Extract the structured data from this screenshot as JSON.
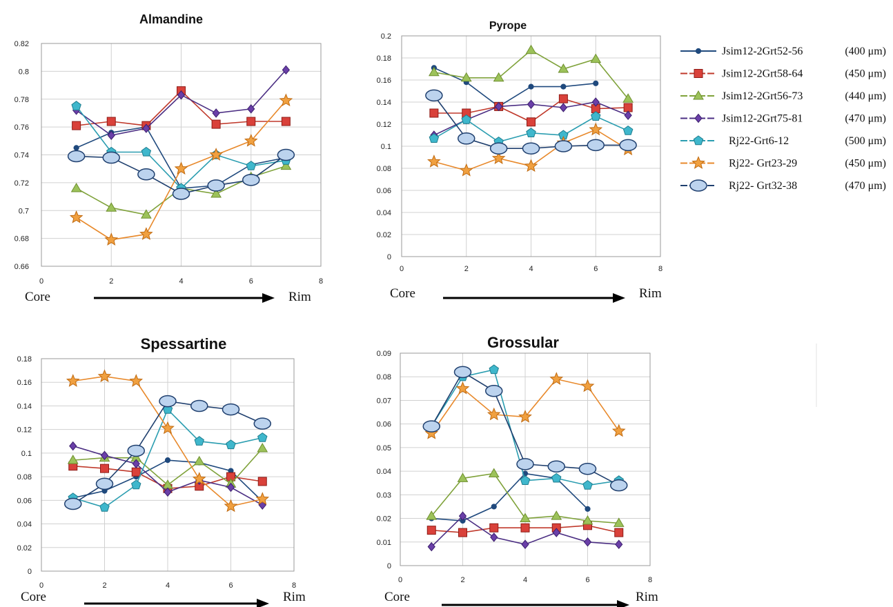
{
  "axis_notes": {
    "core": "Core",
    "rim": "Rim"
  },
  "legend": [
    {
      "label": "Jsim12-2Grt52-56",
      "size": "(400 μm)"
    },
    {
      "label": "Jsim12-2Grt58-64",
      "size": "(450 μm)"
    },
    {
      "label": "Jsim12-2Grt56-73",
      "size": "(440 μm)"
    },
    {
      "label": "Jsim12-2Grt75-81",
      "size": "(470 μm)"
    },
    {
      "label": "Rj22-Grt6-12",
      "size": "(500 μm)"
    },
    {
      "label": "Rj22- Grt23-29",
      "size": "(450 μm)"
    },
    {
      "label": "Rj22- Grt32-38",
      "size": "(470 μm)"
    }
  ],
  "styles": [
    {
      "color": "#1F497D",
      "marker": "circle"
    },
    {
      "color": "#C0392B",
      "marker": "square"
    },
    {
      "color": "#7FA23A",
      "marker": "triangle"
    },
    {
      "color": "#4B2E83",
      "marker": "diamond"
    },
    {
      "color": "#2A9DB0",
      "marker": "pentagon"
    },
    {
      "color": "#E8892B",
      "marker": "star"
    },
    {
      "color": "#1F3F6E",
      "marker": "ellipse"
    }
  ],
  "chart_data": [
    {
      "type": "line",
      "title": "Almandine",
      "xlim": [
        0,
        8
      ],
      "ylim": [
        0.66,
        0.82
      ],
      "x_ticks": [
        "0",
        "2",
        "4",
        "6",
        "8"
      ],
      "y_ticks": [
        "0.66",
        "0.68",
        "0.7",
        "0.72",
        "0.74",
        "0.76",
        "0.78",
        "0.8",
        "0.82"
      ],
      "x": [
        1,
        2,
        3,
        4,
        5,
        6,
        7
      ],
      "series": [
        {
          "name": "Jsim12-2Grt52-56",
          "values": [
            0.745,
            0.756,
            0.76,
            0.716,
            0.718,
            0.733,
            0.738
          ]
        },
        {
          "name": "Jsim12-2Grt58-64",
          "values": [
            0.761,
            0.764,
            0.761,
            0.786,
            0.762,
            0.764,
            0.764
          ]
        },
        {
          "name": "Jsim12-2Grt56-73",
          "values": [
            0.716,
            0.702,
            0.697,
            0.716,
            0.712,
            0.724,
            0.732
          ]
        },
        {
          "name": "Jsim12-2Grt75-81",
          "values": [
            0.772,
            0.754,
            0.759,
            0.783,
            0.77,
            0.773,
            0.801
          ]
        },
        {
          "name": "Rj22-Grt6-12",
          "values": [
            0.775,
            0.742,
            0.742,
            0.716,
            0.74,
            0.732,
            0.736
          ]
        },
        {
          "name": "Rj22- Grt23-29",
          "values": [
            0.695,
            0.679,
            0.683,
            0.73,
            0.74,
            0.75,
            0.779
          ]
        },
        {
          "name": "Rj22- Grt32-38",
          "values": [
            0.739,
            0.738,
            0.726,
            0.712,
            0.718,
            0.722,
            0.74
          ]
        }
      ]
    },
    {
      "type": "line",
      "title": "Pyrope",
      "xlim": [
        0,
        8
      ],
      "ylim": [
        0,
        0.2
      ],
      "x_ticks": [
        "0",
        "2",
        "4",
        "6",
        "8"
      ],
      "y_ticks": [
        "0",
        "0.02",
        "0.04",
        "0.06",
        "0.08",
        "0.1",
        "0.12",
        "0.14",
        "0.16",
        "0.18",
        "0.2"
      ],
      "x": [
        1,
        2,
        3,
        4,
        5,
        6,
        7
      ],
      "series": [
        {
          "name": "Jsim12-2Grt52-56",
          "values": [
            0.171,
            0.158,
            0.136,
            0.154,
            0.154,
            0.157,
            null
          ]
        },
        {
          "name": "Jsim12-2Grt58-64",
          "values": [
            0.13,
            0.13,
            0.136,
            0.122,
            0.143,
            0.134,
            0.135
          ]
        },
        {
          "name": "Jsim12-2Grt56-73",
          "values": [
            0.167,
            0.162,
            0.162,
            0.187,
            0.17,
            0.179,
            0.143
          ]
        },
        {
          "name": "Jsim12-2Grt75-81",
          "values": [
            0.11,
            0.124,
            0.136,
            0.138,
            0.135,
            0.14,
            0.128
          ]
        },
        {
          "name": "Rj22-Grt6-12",
          "values": [
            0.107,
            0.124,
            0.104,
            0.112,
            0.11,
            0.127,
            0.114
          ]
        },
        {
          "name": "Rj22- Grt23-29",
          "values": [
            0.086,
            0.078,
            0.089,
            0.082,
            0.103,
            0.115,
            0.097
          ]
        },
        {
          "name": "Rj22- Grt32-38",
          "values": [
            0.146,
            0.107,
            0.098,
            0.098,
            0.1,
            0.101,
            0.101
          ]
        }
      ]
    },
    {
      "type": "line",
      "title": "Spessartine",
      "xlim": [
        0,
        8
      ],
      "ylim": [
        0,
        0.18
      ],
      "x_ticks": [
        "0",
        "2",
        "4",
        "6",
        "8"
      ],
      "y_ticks": [
        "0",
        "0.02",
        "0.04",
        "0.06",
        "0.08",
        "0.1",
        "0.12",
        "0.14",
        "0.16",
        "0.18"
      ],
      "x": [
        1,
        2,
        3,
        4,
        5,
        6,
        7
      ],
      "series": [
        {
          "name": "Jsim12-2Grt52-56",
          "values": [
            0.062,
            0.068,
            0.08,
            0.094,
            0.092,
            0.085,
            0.059
          ]
        },
        {
          "name": "Jsim12-2Grt58-64",
          "values": [
            0.089,
            0.087,
            0.084,
            0.07,
            0.072,
            0.08,
            0.076
          ]
        },
        {
          "name": "Jsim12-2Grt56-73",
          "values": [
            0.094,
            0.096,
            0.096,
            0.073,
            0.093,
            0.074,
            0.104
          ]
        },
        {
          "name": "Jsim12-2Grt75-81",
          "values": [
            0.106,
            0.098,
            0.091,
            0.067,
            0.077,
            0.071,
            0.056
          ]
        },
        {
          "name": "Rj22-Grt6-12",
          "values": [
            0.062,
            0.054,
            0.073,
            0.137,
            0.11,
            0.107,
            0.113
          ]
        },
        {
          "name": "Rj22- Grt23-29",
          "values": [
            0.161,
            0.165,
            0.161,
            0.121,
            0.078,
            0.055,
            0.061
          ]
        },
        {
          "name": "Rj22- Grt32-38",
          "values": [
            0.057,
            0.074,
            0.102,
            0.144,
            0.14,
            0.137,
            0.125
          ]
        }
      ]
    },
    {
      "type": "line",
      "title": "Grossular",
      "xlim": [
        0,
        8
      ],
      "ylim": [
        0,
        0.09
      ],
      "x_ticks": [
        "0",
        "2",
        "4",
        "6",
        "8"
      ],
      "y_ticks": [
        "0",
        "0.01",
        "0.02",
        "0.03",
        "0.04",
        "0.05",
        "0.06",
        "0.07",
        "0.08",
        "0.09"
      ],
      "x": [
        1,
        2,
        3,
        4,
        5,
        6,
        7
      ],
      "series": [
        {
          "name": "Jsim12-2Grt52-56",
          "values": [
            0.02,
            0.019,
            0.025,
            0.039,
            0.037,
            0.024,
            null
          ]
        },
        {
          "name": "Jsim12-2Grt58-64",
          "values": [
            0.015,
            0.014,
            0.016,
            0.016,
            0.016,
            0.017,
            0.014
          ]
        },
        {
          "name": "Jsim12-2Grt56-73",
          "values": [
            0.021,
            0.037,
            0.039,
            0.02,
            0.021,
            0.019,
            0.018
          ]
        },
        {
          "name": "Jsim12-2Grt75-81",
          "values": [
            0.008,
            0.021,
            0.012,
            0.009,
            0.014,
            0.01,
            0.009
          ]
        },
        {
          "name": "Rj22-Grt6-12",
          "values": [
            0.059,
            0.08,
            0.083,
            0.036,
            0.037,
            0.034,
            0.036
          ]
        },
        {
          "name": "Rj22- Grt23-29",
          "values": [
            0.056,
            0.075,
            0.064,
            0.063,
            0.079,
            0.076,
            0.057
          ]
        },
        {
          "name": "Rj22- Grt32-38",
          "values": [
            0.059,
            0.082,
            0.074,
            0.043,
            0.042,
            0.041,
            0.034
          ]
        }
      ]
    }
  ]
}
